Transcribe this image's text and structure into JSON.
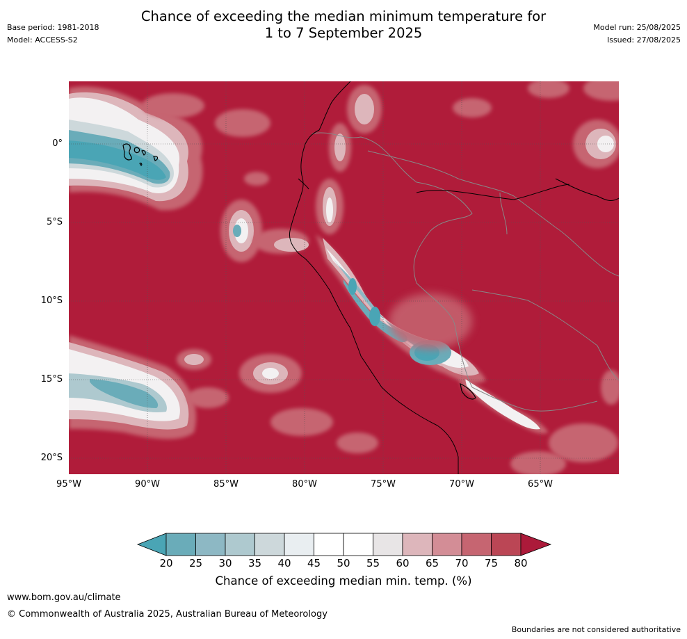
{
  "header": {
    "base_period": "Base period: 1981-2018",
    "model": "Model: ACCESS-S2",
    "title_line1": "Chance of exceeding the median minimum temperature for",
    "title_line2": "1 to 7 September 2025",
    "model_run": "Model run: 25/08/2025",
    "issued": "Issued: 27/08/2025"
  },
  "map": {
    "lat_labels": [
      "0°",
      "5°S",
      "10°S",
      "15°S",
      "20°S"
    ],
    "lon_labels": [
      "95°W",
      "90°W",
      "85°W",
      "80°W",
      "75°W",
      "70°W",
      "65°W"
    ],
    "background_color": "#b01c3a"
  },
  "legend": {
    "ticks": [
      "20",
      "25",
      "30",
      "35",
      "40",
      "45",
      "50",
      "55",
      "60",
      "65",
      "70",
      "75",
      "80"
    ],
    "colors": [
      "#4aa5b5",
      "#6aacb9",
      "#8db8c4",
      "#aec9cf",
      "#cdd8db",
      "#e9eef1",
      "#ffffff",
      "#ffffff",
      "#e8e5e6",
      "#ddb6bb",
      "#d38d96",
      "#c66571",
      "#bb4655",
      "#ac1a3a"
    ],
    "title": "Chance of exceeding median min. temp. (%)"
  },
  "footer": {
    "website": "www.bom.gov.au/climate",
    "copyright": "© Commonwealth of Australia 2025, Australian Bureau of Meteorology",
    "disclaimer": "Boundaries are not considered authoritative"
  }
}
